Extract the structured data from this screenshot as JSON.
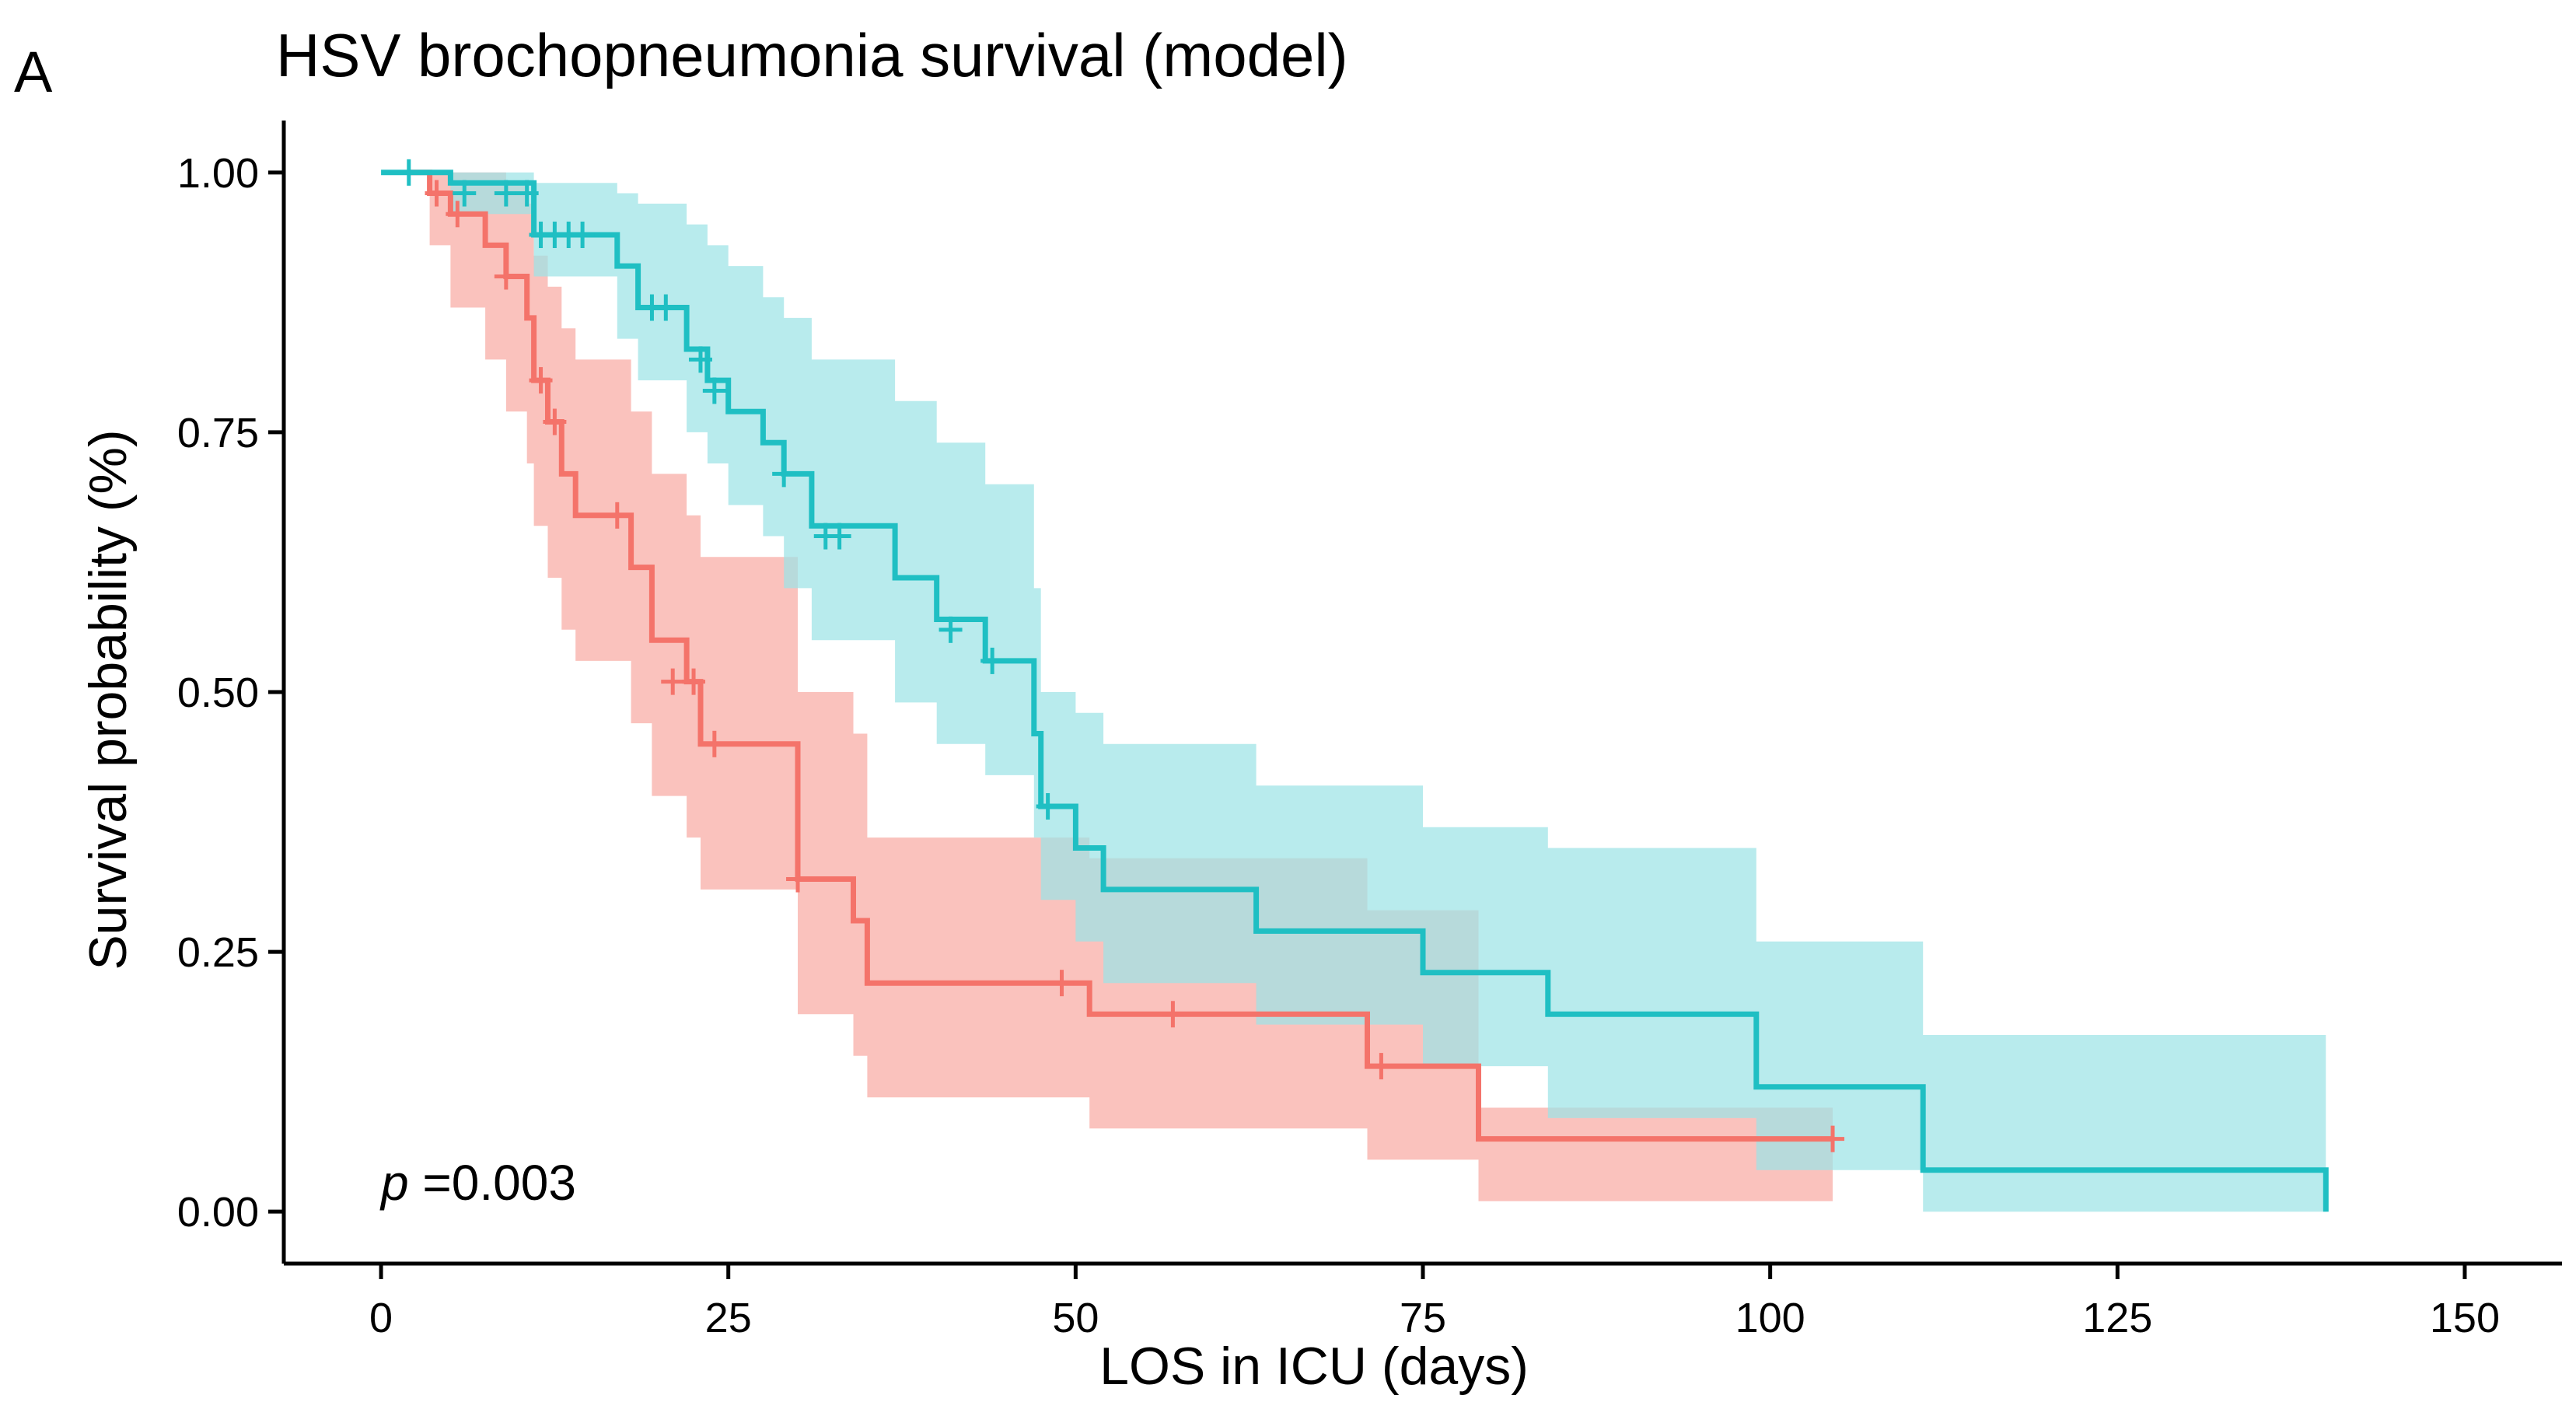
{
  "panel_label": "A",
  "chart_data": {
    "type": "line",
    "subtype": "kaplan-meier",
    "title": "HSV brochopneumonia survival (model)",
    "xlabel": "LOS in ICU (days)",
    "ylabel": "Survival probability (%)",
    "xlim": [
      -7,
      157
    ],
    "ylim": [
      -0.05,
      1.05
    ],
    "xticks": [
      0,
      25,
      50,
      75,
      100,
      125,
      150
    ],
    "xtick_labels": [
      "0",
      "25",
      "50",
      "75",
      "100",
      "125",
      "150"
    ],
    "yticks": [
      0,
      0.25,
      0.5,
      0.75,
      1
    ],
    "ytick_labels": [
      "0.00",
      "0.25",
      "0.50",
      "0.75",
      "1.00"
    ],
    "annotation": {
      "p_symbol": "p",
      "p_value": "=0.003",
      "x": 0,
      "y": 0.01
    },
    "series": [
      {
        "name": "red group",
        "color": "#F4736A",
        "ci_color": "#F8AAA4",
        "steps": [
          [
            2,
            1.0
          ],
          [
            3.5,
            0.98
          ],
          [
            5,
            0.96
          ],
          [
            7.5,
            0.93
          ],
          [
            9,
            0.9
          ],
          [
            10.5,
            0.86
          ],
          [
            11,
            0.8
          ],
          [
            12,
            0.76
          ],
          [
            13,
            0.71
          ],
          [
            14,
            0.67
          ],
          [
            18,
            0.62
          ],
          [
            19.5,
            0.55
          ],
          [
            22,
            0.51
          ],
          [
            23,
            0.45
          ],
          [
            30,
            0.32
          ],
          [
            34,
            0.28
          ],
          [
            35,
            0.22
          ],
          [
            51,
            0.19
          ],
          [
            71,
            0.14
          ],
          [
            79,
            0.07
          ],
          [
            104.5,
            0.07
          ]
        ],
        "ci_lower": [
          [
            2,
            1.0
          ],
          [
            3.5,
            0.93
          ],
          [
            5,
            0.87
          ],
          [
            7.5,
            0.82
          ],
          [
            9,
            0.77
          ],
          [
            10.5,
            0.72
          ],
          [
            11,
            0.66
          ],
          [
            12,
            0.61
          ],
          [
            13,
            0.56
          ],
          [
            14,
            0.53
          ],
          [
            18,
            0.47
          ],
          [
            19.5,
            0.4
          ],
          [
            22,
            0.36
          ],
          [
            23,
            0.31
          ],
          [
            30,
            0.19
          ],
          [
            34,
            0.15
          ],
          [
            35,
            0.11
          ],
          [
            51,
            0.08
          ],
          [
            71,
            0.05
          ],
          [
            79,
            0.01
          ],
          [
            104.5,
            0.01
          ]
        ],
        "ci_upper": [
          [
            2,
            1.0
          ],
          [
            3.5,
            1.0
          ],
          [
            5,
            1.0
          ],
          [
            7.5,
            1.0
          ],
          [
            9,
            0.99
          ],
          [
            10.5,
            0.97
          ],
          [
            11,
            0.92
          ],
          [
            12,
            0.89
          ],
          [
            13,
            0.85
          ],
          [
            14,
            0.82
          ],
          [
            18,
            0.77
          ],
          [
            19.5,
            0.71
          ],
          [
            22,
            0.67
          ],
          [
            23,
            0.63
          ],
          [
            30,
            0.5
          ],
          [
            34,
            0.46
          ],
          [
            35,
            0.36
          ],
          [
            51,
            0.34
          ],
          [
            71,
            0.29
          ],
          [
            79,
            0.1
          ],
          [
            104.5,
            0.1
          ]
        ],
        "censors": [
          [
            4,
            0.98
          ],
          [
            5.5,
            0.96
          ],
          [
            9,
            0.9
          ],
          [
            11.5,
            0.8
          ],
          [
            12.5,
            0.76
          ],
          [
            17,
            0.67
          ],
          [
            21,
            0.51
          ],
          [
            22.5,
            0.51
          ],
          [
            24,
            0.45
          ],
          [
            30,
            0.32
          ],
          [
            49,
            0.22
          ],
          [
            57,
            0.19
          ],
          [
            72,
            0.14
          ],
          [
            104.5,
            0.07
          ]
        ]
      },
      {
        "name": "teal group",
        "color": "#1FBFC3",
        "ci_color": "#9DE3E6",
        "steps": [
          [
            0,
            1.0
          ],
          [
            5,
            0.99
          ],
          [
            11,
            0.94
          ],
          [
            17,
            0.91
          ],
          [
            18.5,
            0.87
          ],
          [
            22,
            0.83
          ],
          [
            23.5,
            0.8
          ],
          [
            25,
            0.77
          ],
          [
            27.5,
            0.74
          ],
          [
            29,
            0.71
          ],
          [
            31,
            0.66
          ],
          [
            37,
            0.61
          ],
          [
            40,
            0.57
          ],
          [
            43.5,
            0.53
          ],
          [
            47,
            0.46
          ],
          [
            47.5,
            0.39
          ],
          [
            50,
            0.35
          ],
          [
            52,
            0.31
          ],
          [
            63,
            0.27
          ],
          [
            75,
            0.23
          ],
          [
            84,
            0.19
          ],
          [
            99,
            0.12
          ],
          [
            111,
            0.04
          ],
          [
            140,
            0.0
          ]
        ],
        "ci_lower": [
          [
            0,
            1.0
          ],
          [
            5,
            0.96
          ],
          [
            11,
            0.9
          ],
          [
            17,
            0.84
          ],
          [
            18.5,
            0.8
          ],
          [
            22,
            0.75
          ],
          [
            23.5,
            0.72
          ],
          [
            25,
            0.68
          ],
          [
            27.5,
            0.65
          ],
          [
            29,
            0.6
          ],
          [
            31,
            0.55
          ],
          [
            37,
            0.49
          ],
          [
            40,
            0.45
          ],
          [
            43.5,
            0.42
          ],
          [
            47,
            0.36
          ],
          [
            47.5,
            0.3
          ],
          [
            50,
            0.26
          ],
          [
            52,
            0.22
          ],
          [
            63,
            0.18
          ],
          [
            75,
            0.14
          ],
          [
            84,
            0.09
          ],
          [
            99,
            0.04
          ],
          [
            111,
            0.0
          ],
          [
            140,
            0.0
          ]
        ],
        "ci_upper": [
          [
            0,
            1.0
          ],
          [
            5,
            1.0
          ],
          [
            11,
            0.99
          ],
          [
            17,
            0.98
          ],
          [
            18.5,
            0.97
          ],
          [
            22,
            0.95
          ],
          [
            23.5,
            0.93
          ],
          [
            25,
            0.91
          ],
          [
            27.5,
            0.88
          ],
          [
            29,
            0.86
          ],
          [
            31,
            0.82
          ],
          [
            37,
            0.78
          ],
          [
            40,
            0.74
          ],
          [
            43.5,
            0.7
          ],
          [
            47,
            0.6
          ],
          [
            47.5,
            0.5
          ],
          [
            50,
            0.48
          ],
          [
            52,
            0.45
          ],
          [
            63,
            0.41
          ],
          [
            75,
            0.37
          ],
          [
            84,
            0.35
          ],
          [
            99,
            0.26
          ],
          [
            111,
            0.17
          ],
          [
            140,
            0.17
          ]
        ],
        "censors": [
          [
            2,
            1.0
          ],
          [
            6,
            0.98
          ],
          [
            9,
            0.98
          ],
          [
            10.5,
            0.98
          ],
          [
            11.5,
            0.94
          ],
          [
            12.5,
            0.94
          ],
          [
            13.5,
            0.94
          ],
          [
            14.5,
            0.94
          ],
          [
            19.5,
            0.87
          ],
          [
            20.5,
            0.87
          ],
          [
            23,
            0.82
          ],
          [
            24,
            0.79
          ],
          [
            29,
            0.71
          ],
          [
            32,
            0.65
          ],
          [
            33,
            0.65
          ],
          [
            41,
            0.56
          ],
          [
            44,
            0.53
          ],
          [
            48,
            0.39
          ]
        ]
      }
    ]
  }
}
